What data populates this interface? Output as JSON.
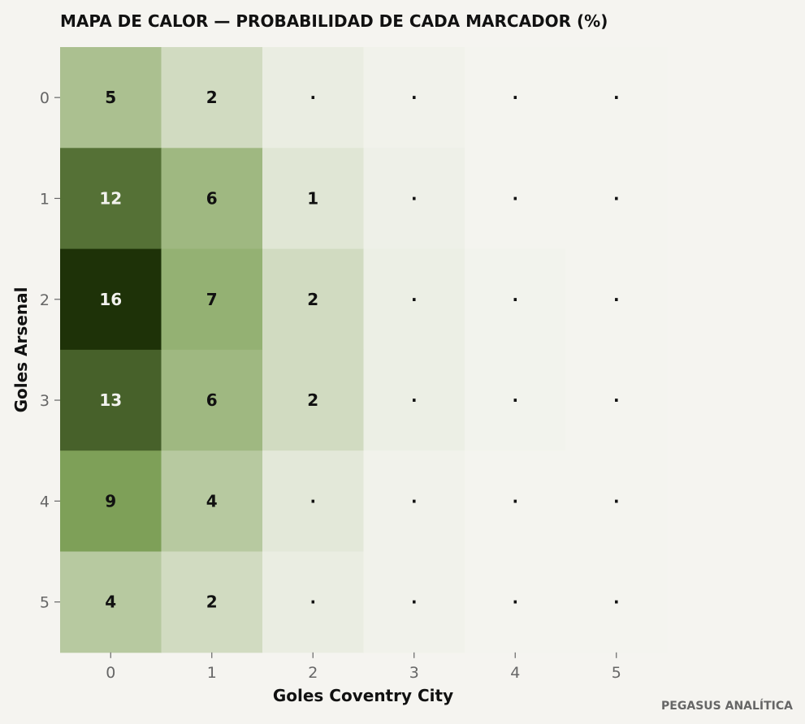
{
  "chart_data": {
    "type": "heatmap",
    "title": "MAPA DE CALOR — PROBABILIDAD DE CADA MARCADOR (%)",
    "xlabel": "Goles Coventry City",
    "ylabel": "Goles Arsenal",
    "x_categories": [
      "0",
      "1",
      "2",
      "3",
      "4",
      "5"
    ],
    "y_categories": [
      "0",
      "1",
      "2",
      "3",
      "4",
      "5"
    ],
    "values": [
      [
        5,
        2,
        0.4,
        0.1,
        0.0,
        0.0
      ],
      [
        12,
        6,
        1,
        0.2,
        0.0,
        0.0
      ],
      [
        16,
        7,
        2,
        0.3,
        0.05,
        0.0
      ],
      [
        13,
        6,
        2,
        0.3,
        0.05,
        0.0
      ],
      [
        9,
        4,
        0.8,
        0.1,
        0.0,
        0.0
      ],
      [
        4,
        2,
        0.4,
        0.1,
        0.0,
        0.0
      ]
    ],
    "cell_labels": [
      [
        "5",
        "2",
        "·",
        "·",
        "·",
        "·"
      ],
      [
        "12",
        "6",
        "1",
        "·",
        "·",
        "·"
      ],
      [
        "16",
        "7",
        "2",
        "·",
        "·",
        "·"
      ],
      [
        "13",
        "6",
        "2",
        "·",
        "·",
        "·"
      ],
      [
        "9",
        "4",
        "·",
        "·",
        "·",
        "·"
      ],
      [
        "4",
        "2",
        "·",
        "·",
        "·",
        "·"
      ]
    ],
    "colorscale": {
      "low": "#f4f4ef",
      "mid": "#81a35a",
      "high": "#1e3208"
    },
    "vmax": 16
  },
  "credit": "PEGASUS ANALÍTICA",
  "colors": {
    "background": "#f5f4f0",
    "text": "#111111",
    "muted": "#666666"
  }
}
